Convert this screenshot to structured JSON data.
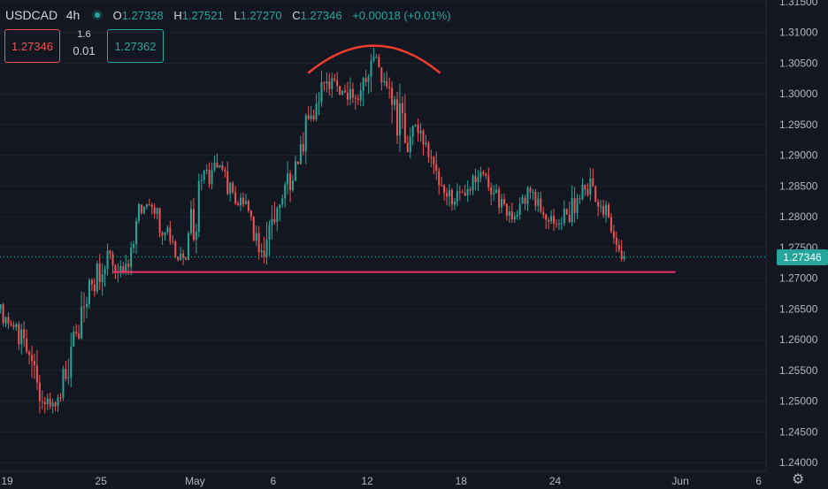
{
  "header": {
    "symbol": "USDCAD",
    "interval": "4h",
    "o_label": "O",
    "o_value": "1.27328",
    "h_label": "H",
    "h_value": "1.27521",
    "l_label": "L",
    "l_value": "1.27270",
    "c_label": "C",
    "c_value": "1.27346",
    "change": "+0.00018 (+0.01%)"
  },
  "trade": {
    "sell": "1.27346",
    "spread": "1.6",
    "lot": "0.01",
    "buy": "1.27362"
  },
  "colors": {
    "bg": "#131722",
    "up": "#26a69a",
    "down": "#ef5350",
    "support": "#f0306a",
    "arc": "#f23c2e"
  },
  "chart_data": {
    "type": "candlestick",
    "symbol": "USDCAD",
    "interval": "4h",
    "y_ticks": [
      "1.31500",
      "1.31000",
      "1.30500",
      "1.30000",
      "1.29500",
      "1.29000",
      "1.28500",
      "1.28000",
      "1.27500",
      "1.27000",
      "1.26500",
      "1.26000",
      "1.25500",
      "1.25000",
      "1.24500",
      "1.24000"
    ],
    "x_ticks": [
      "19",
      "25",
      "May",
      "6",
      "12",
      "18",
      "24",
      "Jun",
      "6"
    ],
    "ylim": [
      1.2375,
      1.3165
    ],
    "last_price": "1.27346",
    "series": [
      {
        "date": "Apr 19",
        "o": 1.265,
        "h": 1.266,
        "l": 1.2605,
        "c": 1.262
      },
      {
        "date": "Apr 20",
        "o": 1.262,
        "h": 1.263,
        "l": 1.256,
        "c": 1.2575
      },
      {
        "date": "Apr 21",
        "o": 1.2575,
        "h": 1.259,
        "l": 1.248,
        "c": 1.2495
      },
      {
        "date": "Apr 22",
        "o": 1.2495,
        "h": 1.252,
        "l": 1.246,
        "c": 1.2505
      },
      {
        "date": "Apr 23",
        "o": 1.2505,
        "h": 1.2625,
        "l": 1.25,
        "c": 1.261
      },
      {
        "date": "Apr 24",
        "o": 1.261,
        "h": 1.27,
        "l": 1.26,
        "c": 1.269
      },
      {
        "date": "Apr 25",
        "o": 1.269,
        "h": 1.276,
        "l": 1.267,
        "c": 1.2745
      },
      {
        "date": "Apr 26",
        "o": 1.2745,
        "h": 1.275,
        "l": 1.268,
        "c": 1.271
      },
      {
        "date": "Apr 27",
        "o": 1.271,
        "h": 1.283,
        "l": 1.2705,
        "c": 1.282
      },
      {
        "date": "Apr 28",
        "o": 1.282,
        "h": 1.285,
        "l": 1.279,
        "c": 1.2805
      },
      {
        "date": "Apr 29",
        "o": 1.2805,
        "h": 1.2815,
        "l": 1.2745,
        "c": 1.276
      },
      {
        "date": "Apr 30",
        "o": 1.276,
        "h": 1.2775,
        "l": 1.2715,
        "c": 1.273
      },
      {
        "date": "May 1",
        "o": 1.273,
        "h": 1.287,
        "l": 1.272,
        "c": 1.286
      },
      {
        "date": "May 2",
        "o": 1.286,
        "h": 1.291,
        "l": 1.2845,
        "c": 1.288
      },
      {
        "date": "May 3",
        "o": 1.288,
        "h": 1.289,
        "l": 1.282,
        "c": 1.284
      },
      {
        "date": "May 4",
        "o": 1.284,
        "h": 1.285,
        "l": 1.28,
        "c": 1.281
      },
      {
        "date": "May 5",
        "o": 1.281,
        "h": 1.282,
        "l": 1.272,
        "c": 1.2735
      },
      {
        "date": "May 6",
        "o": 1.2735,
        "h": 1.283,
        "l": 1.2715,
        "c": 1.282
      },
      {
        "date": "May 7",
        "o": 1.282,
        "h": 1.29,
        "l": 1.2815,
        "c": 1.289
      },
      {
        "date": "May 8",
        "o": 1.289,
        "h": 1.298,
        "l": 1.2885,
        "c": 1.2965
      },
      {
        "date": "May 9",
        "o": 1.2965,
        "h": 1.304,
        "l": 1.2955,
        "c": 1.302
      },
      {
        "date": "May 10",
        "o": 1.302,
        "h": 1.305,
        "l": 1.299,
        "c": 1.3005
      },
      {
        "date": "May 11",
        "o": 1.3005,
        "h": 1.303,
        "l": 1.295,
        "c": 1.299
      },
      {
        "date": "May 12",
        "o": 1.299,
        "h": 1.3075,
        "l": 1.2975,
        "c": 1.306
      },
      {
        "date": "May 13",
        "o": 1.306,
        "h": 1.3065,
        "l": 1.299,
        "c": 1.301
      },
      {
        "date": "May 14",
        "o": 1.301,
        "h": 1.302,
        "l": 1.289,
        "c": 1.292
      },
      {
        "date": "May 15",
        "o": 1.292,
        "h": 1.296,
        "l": 1.289,
        "c": 1.294
      },
      {
        "date": "May 16",
        "o": 1.294,
        "h": 1.2945,
        "l": 1.286,
        "c": 1.2875
      },
      {
        "date": "May 17",
        "o": 1.2875,
        "h": 1.288,
        "l": 1.281,
        "c": 1.282
      },
      {
        "date": "May 18",
        "o": 1.282,
        "h": 1.286,
        "l": 1.28,
        "c": 1.2845
      },
      {
        "date": "May 19",
        "o": 1.2845,
        "h": 1.2895,
        "l": 1.2835,
        "c": 1.287
      },
      {
        "date": "May 20",
        "o": 1.287,
        "h": 1.288,
        "l": 1.28,
        "c": 1.2815
      },
      {
        "date": "May 21",
        "o": 1.2815,
        "h": 1.286,
        "l": 1.279,
        "c": 1.28
      },
      {
        "date": "May 22",
        "o": 1.28,
        "h": 1.285,
        "l": 1.2795,
        "c": 1.284
      },
      {
        "date": "May 23",
        "o": 1.284,
        "h": 1.2845,
        "l": 1.278,
        "c": 1.2795
      },
      {
        "date": "May 24",
        "o": 1.2795,
        "h": 1.282,
        "l": 1.277,
        "c": 1.279
      },
      {
        "date": "May 25",
        "o": 1.279,
        "h": 1.287,
        "l": 1.2785,
        "c": 1.283
      },
      {
        "date": "May 26",
        "o": 1.283,
        "h": 1.288,
        "l": 1.281,
        "c": 1.285
      },
      {
        "date": "May 27",
        "o": 1.285,
        "h": 1.2855,
        "l": 1.279,
        "c": 1.28
      },
      {
        "date": "May 28",
        "o": 1.28,
        "h": 1.281,
        "l": 1.2727,
        "c": 1.2735
      }
    ],
    "annotations": [
      {
        "type": "horizontal-line",
        "price": 1.271,
        "from": "Apr 25",
        "to": "May 31"
      },
      {
        "type": "arc",
        "from": "May 8",
        "to": "May 17",
        "peak_price": 1.308
      }
    ]
  }
}
